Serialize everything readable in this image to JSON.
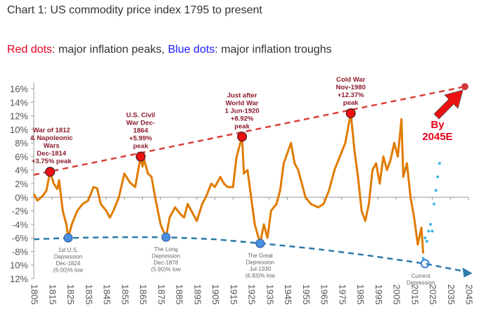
{
  "title": "Chart 1: US commodity price index 1795 to present",
  "legend": {
    "red_label": "Red dots",
    "red_text": ": major inflation peaks, ",
    "blue_label": "Blue dots",
    "blue_text": ": major inflation troughs"
  },
  "chart_data": {
    "type": "line",
    "title": "Chart 1: US commodity price index 1795 to present",
    "xlim": [
      1805,
      2045
    ],
    "ylim": [
      -12,
      16
    ],
    "x_ticks": [
      "1805",
      "1815",
      "1825",
      "1835",
      "1845",
      "1855",
      "1865",
      "1875",
      "1885",
      "1895",
      "1905",
      "1915",
      "1925",
      "1935",
      "1945",
      "1955",
      "1965",
      "1975",
      "1985",
      "1995",
      "2005",
      "2015",
      "2025",
      "2035",
      "2045"
    ],
    "y_ticks": [
      {
        "v": 16,
        "label": "16%"
      },
      {
        "v": 14,
        "label": "14%"
      },
      {
        "v": 12,
        "label": "12%"
      },
      {
        "v": 10,
        "label": "10%"
      },
      {
        "v": 8,
        "label": "8%"
      },
      {
        "v": 6,
        "label": "6%"
      },
      {
        "v": 4,
        "label": "4%"
      },
      {
        "v": 2,
        "label": "2%"
      },
      {
        "v": 0,
        "label": "0%"
      },
      {
        "v": -2,
        "label": "-2%"
      },
      {
        "v": -4,
        "label": "-4%"
      },
      {
        "v": -6,
        "label": "-6%"
      },
      {
        "v": -8,
        "label": "-8%"
      },
      {
        "v": -10,
        "label": "10%"
      },
      {
        "v": -12,
        "label": "12%"
      }
    ],
    "series": [
      {
        "color": "#e07b00",
        "points": [
          [
            1805,
            0.5
          ],
          [
            1807,
            -0.5
          ],
          [
            1810,
            0.2
          ],
          [
            1812,
            1
          ],
          [
            1814,
            3.75
          ],
          [
            1816,
            2
          ],
          [
            1818,
            1.2
          ],
          [
            1819,
            2.5
          ],
          [
            1821,
            -2
          ],
          [
            1823,
            -4
          ],
          [
            1824,
            -6
          ],
          [
            1826,
            -4
          ],
          [
            1829,
            -2
          ],
          [
            1832,
            -1
          ],
          [
            1835,
            -0.5
          ],
          [
            1838,
            1.5
          ],
          [
            1840,
            1.3
          ],
          [
            1842,
            -1
          ],
          [
            1845,
            -2
          ],
          [
            1847,
            -3
          ],
          [
            1849,
            -2
          ],
          [
            1852,
            0
          ],
          [
            1855,
            3.5
          ],
          [
            1858,
            2.2
          ],
          [
            1861,
            1.5
          ],
          [
            1864,
            5.99
          ],
          [
            1865,
            4.5
          ],
          [
            1866,
            5.5
          ],
          [
            1868,
            3.5
          ],
          [
            1870,
            3
          ],
          [
            1872,
            0
          ],
          [
            1875,
            -4
          ],
          [
            1878,
            -5.9
          ],
          [
            1880,
            -3
          ],
          [
            1883,
            -1.5
          ],
          [
            1886,
            -2.5
          ],
          [
            1888,
            -3
          ],
          [
            1890,
            -1
          ],
          [
            1893,
            -2.5
          ],
          [
            1895,
            -3.5
          ],
          [
            1898,
            -1
          ],
          [
            1900,
            0
          ],
          [
            1903,
            2
          ],
          [
            1905,
            1.5
          ],
          [
            1908,
            3
          ],
          [
            1910,
            2
          ],
          [
            1912,
            1.5
          ],
          [
            1915,
            1.5
          ],
          [
            1917,
            6
          ],
          [
            1920,
            8.92
          ],
          [
            1921,
            3.5
          ],
          [
            1923,
            4
          ],
          [
            1925,
            0
          ],
          [
            1927,
            -4
          ],
          [
            1930,
            -6.83
          ],
          [
            1932,
            -4
          ],
          [
            1934,
            -6
          ],
          [
            1936,
            -2
          ],
          [
            1939,
            -1
          ],
          [
            1941,
            1
          ],
          [
            1943,
            5
          ],
          [
            1945,
            6.5
          ],
          [
            1947,
            8
          ],
          [
            1949,
            5
          ],
          [
            1951,
            4
          ],
          [
            1953,
            2
          ],
          [
            1955,
            0
          ],
          [
            1958,
            -1
          ],
          [
            1962,
            -1.5
          ],
          [
            1965,
            -1
          ],
          [
            1968,
            1
          ],
          [
            1971,
            4
          ],
          [
            1974,
            6
          ],
          [
            1977,
            8
          ],
          [
            1980,
            12.37
          ],
          [
            1982,
            7
          ],
          [
            1984,
            3
          ],
          [
            1986,
            -2
          ],
          [
            1988,
            -3.5
          ],
          [
            1990,
            -1
          ],
          [
            1992,
            4
          ],
          [
            1994,
            5
          ],
          [
            1996,
            2
          ],
          [
            1998,
            6
          ],
          [
            2000,
            4
          ],
          [
            2002,
            5.5
          ],
          [
            2004,
            8
          ],
          [
            2006,
            6
          ],
          [
            2008,
            11.5
          ],
          [
            2009,
            3
          ],
          [
            2011,
            5
          ],
          [
            2013,
            0
          ],
          [
            2015,
            -3
          ],
          [
            2017,
            -7
          ],
          [
            2019,
            -4.5
          ],
          [
            2020,
            -8.3
          ]
        ]
      },
      {
        "color": "#3db5e6",
        "style": "dotted",
        "points": [
          [
            2020,
            -9
          ],
          [
            2021,
            -6
          ],
          [
            2022,
            -6.5
          ],
          [
            2023,
            -5
          ],
          [
            2024,
            -4
          ],
          [
            2025,
            -5
          ],
          [
            2026,
            -1
          ],
          [
            2027,
            1
          ],
          [
            2028,
            3
          ],
          [
            2029,
            5
          ]
        ]
      }
    ],
    "trend_lines": [
      {
        "color": "#d9403b",
        "style": "dashed",
        "points": [
          [
            1805,
            3.3
          ],
          [
            2043,
            16.3
          ]
        ]
      },
      {
        "color": "#2a7aa8",
        "style": "dashed",
        "points": [
          [
            1805,
            -6.2
          ],
          [
            1825,
            -6
          ],
          [
            1850,
            -5.9
          ],
          [
            1878,
            -5.9
          ],
          [
            1905,
            -6.2
          ],
          [
            1930,
            -6.8
          ],
          [
            1960,
            -7.6
          ],
          [
            1990,
            -8.6
          ],
          [
            2021,
            -9.8
          ],
          [
            2044,
            -11
          ]
        ]
      }
    ],
    "peaks": [
      {
        "x": 1814,
        "y": 3.75,
        "label": [
          "War of 1812",
          "& Napoleonic",
          "Wars",
          "Dec-1814",
          "+3.75% peak"
        ]
      },
      {
        "x": 1864,
        "y": 5.99,
        "label": [
          "U.S. Civil",
          "War Dec-",
          "1864",
          "+5.99%",
          "peak"
        ]
      },
      {
        "x": 1920,
        "y": 8.92,
        "label": [
          "Just after",
          "World War",
          "1 Jun-1920",
          "+8.92%",
          "peak"
        ]
      },
      {
        "x": 1980,
        "y": 12.37,
        "label": [
          "Cold War",
          "Nov-1980",
          "+12.37%",
          "peak"
        ]
      },
      {
        "x": 2043,
        "y": 16.3,
        "label": []
      }
    ],
    "troughs": [
      {
        "x": 1824,
        "y": -6.0,
        "label": [
          "1st U.S.",
          "Depression",
          "Dec-1824",
          "(6.00)% low"
        ]
      },
      {
        "x": 1878,
        "y": -5.9,
        "label": [
          "The Long",
          "Depression",
          "Dec-1878",
          "(5.90)% low"
        ]
      },
      {
        "x": 1930,
        "y": -6.83,
        "label": [
          "The Great",
          "Depression",
          "Jul-1930",
          "(6.83)% low"
        ]
      },
      {
        "x": 2021,
        "y": -9.8,
        "label": [
          "Current",
          "Depression"
        ],
        "hollow": true
      }
    ],
    "callout": {
      "text": [
        "By",
        "2045E"
      ],
      "color": "#e8001c"
    }
  }
}
